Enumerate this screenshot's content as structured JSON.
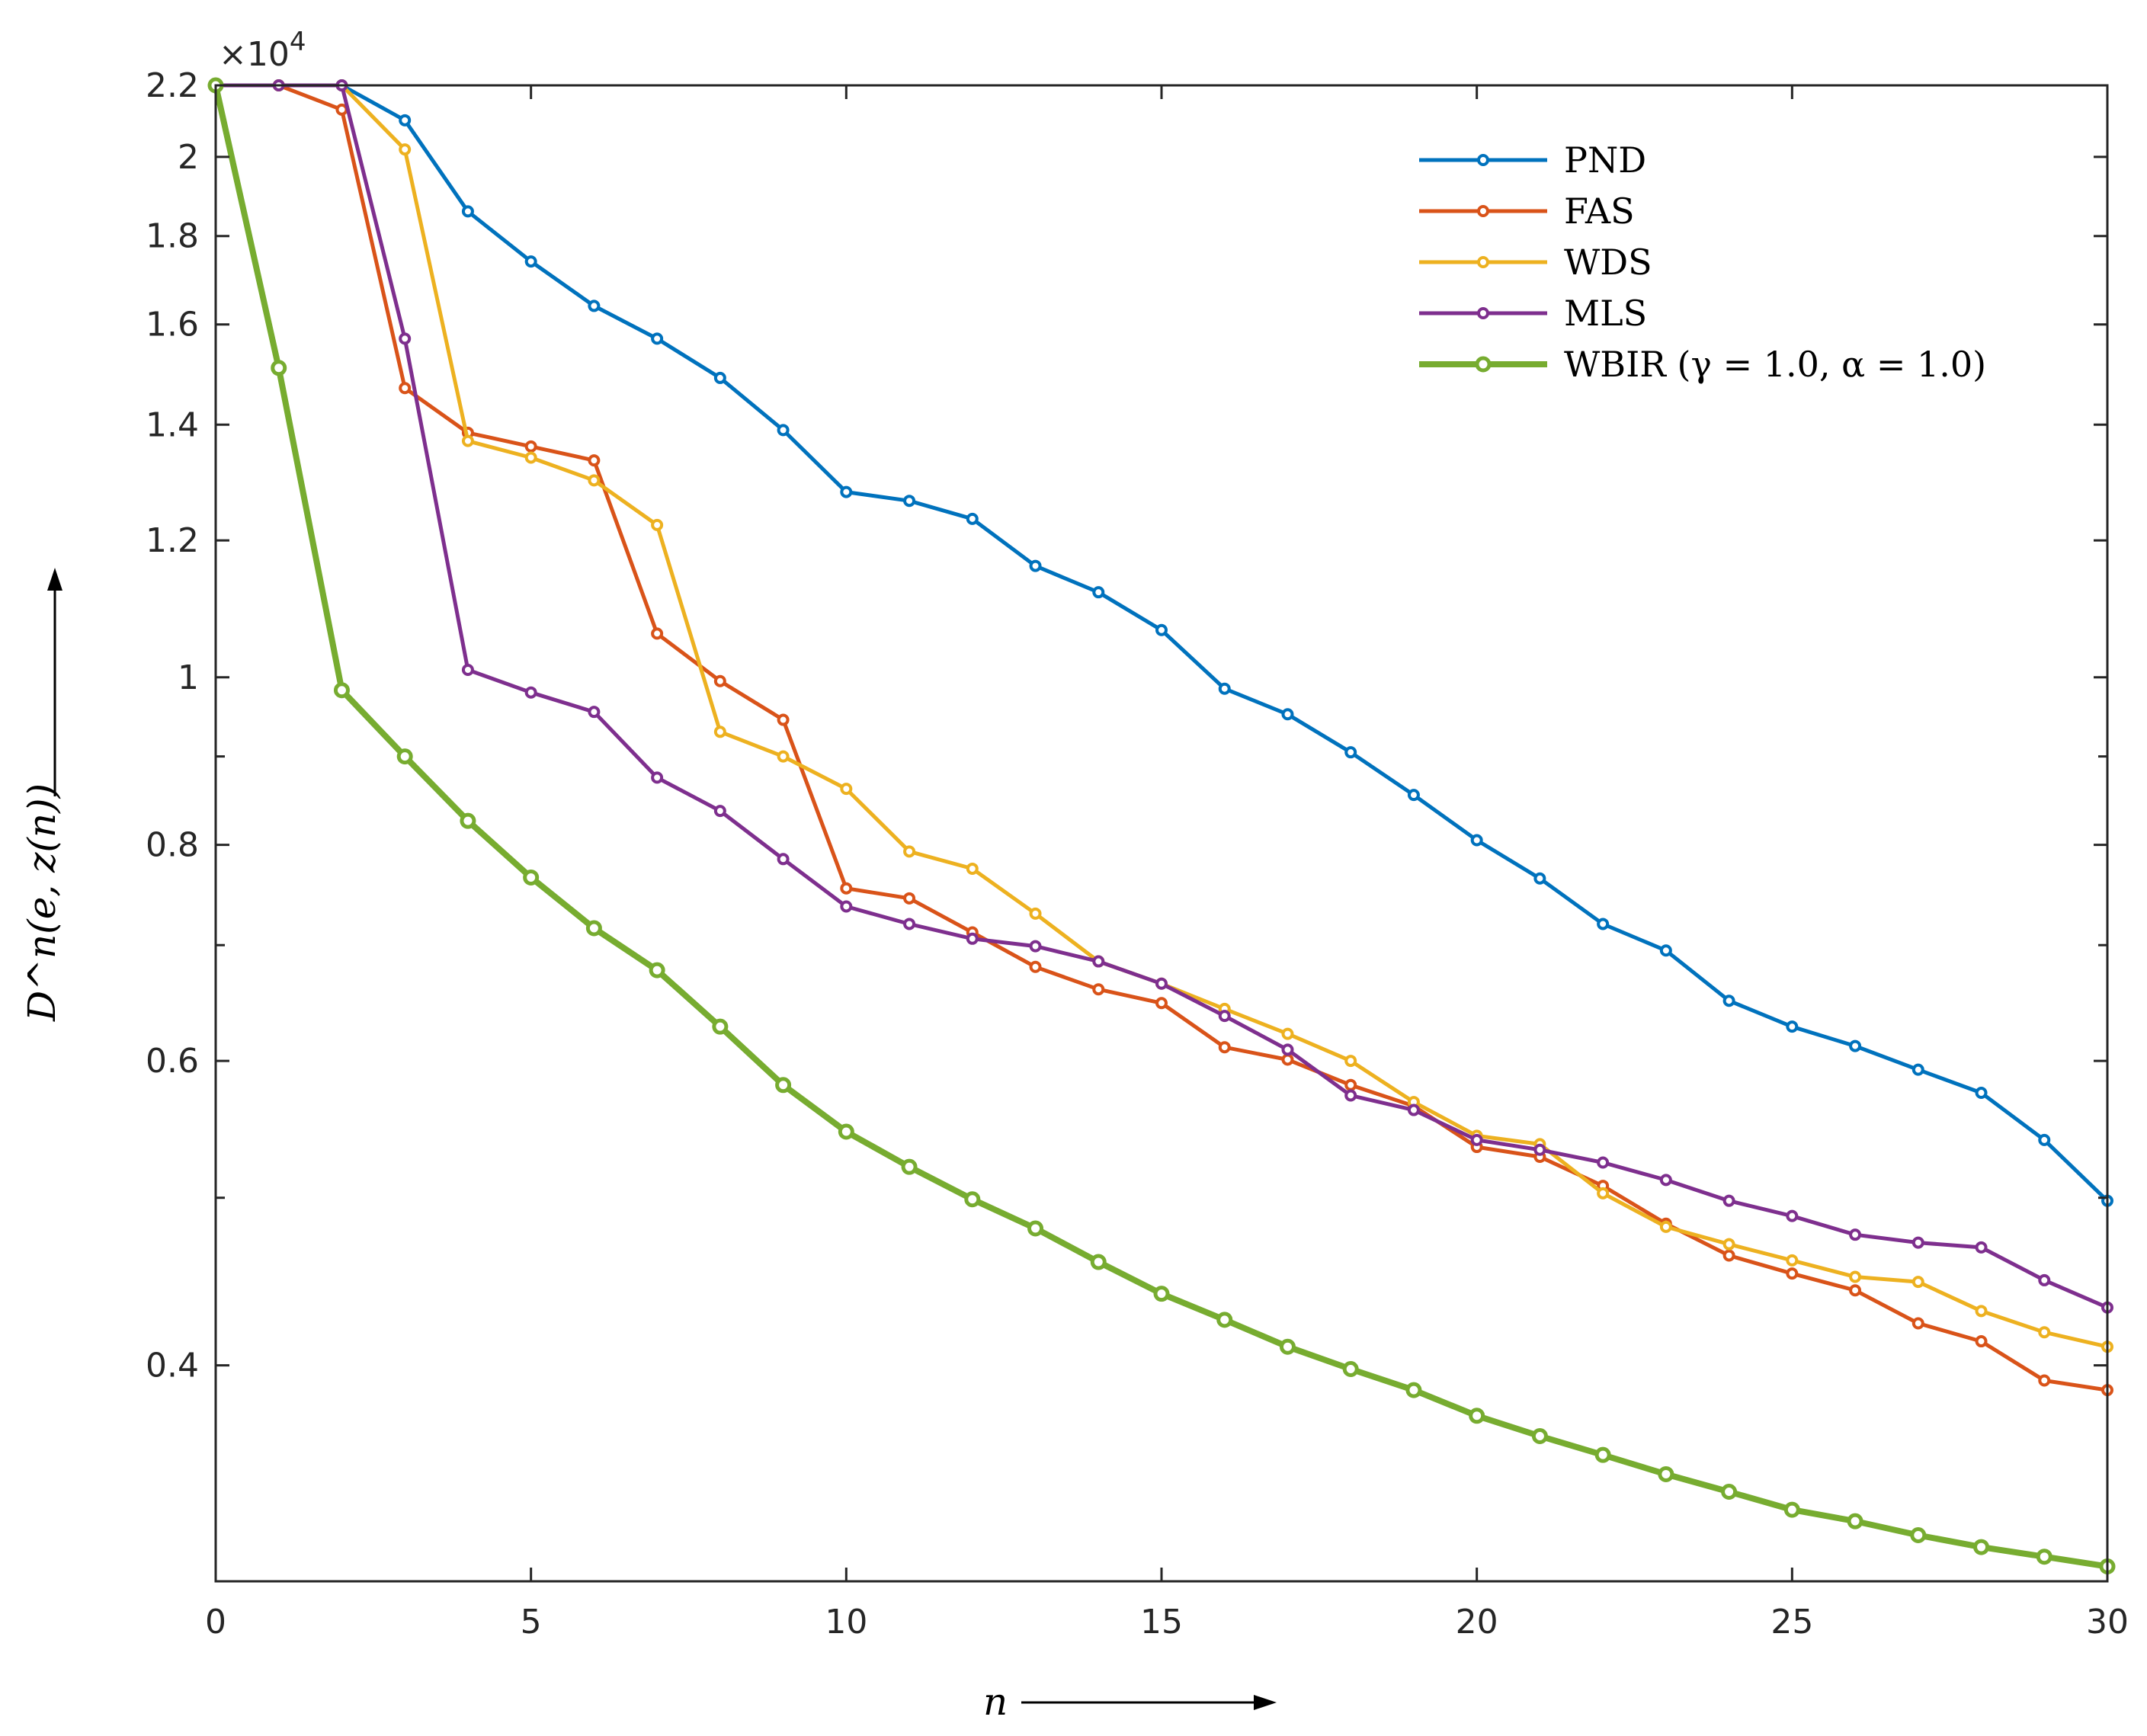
{
  "chart_data": {
    "type": "line",
    "title": "",
    "xlabel": "n",
    "ylabel": "D^n(e, z(n))",
    "xlim": [
      0,
      30
    ],
    "ylim": [
      0.3,
      2.2
    ],
    "y_scale": "log",
    "y_exponent_label": "×10^4",
    "x_ticks": [
      0,
      5,
      10,
      15,
      20,
      25,
      30
    ],
    "x_tick_labels": [
      "0",
      "5",
      "10",
      "15",
      "20",
      "25",
      "30"
    ],
    "y_ticks": [
      0.4,
      0.6,
      0.8,
      1,
      1.2,
      1.4,
      1.6,
      1.8,
      2,
      2.2
    ],
    "y_tick_labels": [
      "0.4",
      "0.6",
      "0.8",
      "1",
      "1.2",
      "1.4",
      "1.6",
      "1.8",
      "2",
      "2.2"
    ],
    "legend_position": "top-right",
    "x": [
      0,
      1,
      2,
      3,
      4,
      5,
      6,
      7,
      8,
      9,
      10,
      11,
      12,
      13,
      14,
      15,
      16,
      17,
      18,
      19,
      20,
      21,
      22,
      23,
      24,
      25,
      26,
      27,
      28,
      29,
      30
    ],
    "series": [
      {
        "name": "PND",
        "legend_text": "PND",
        "color": "#0072BD",
        "line_width": 5,
        "marker_radius": 6,
        "values": [
          2.2,
          2.2,
          2.2,
          2.1,
          1.86,
          1.74,
          1.64,
          1.57,
          1.49,
          1.39,
          1.28,
          1.265,
          1.235,
          1.16,
          1.12,
          1.065,
          0.985,
          0.952,
          0.905,
          0.855,
          0.805,
          0.765,
          0.72,
          0.695,
          0.65,
          0.628,
          0.612,
          0.593,
          0.575,
          0.54,
          0.498
        ]
      },
      {
        "name": "FAS",
        "legend_text": "FAS",
        "color": "#D95319",
        "line_width": 5,
        "marker_radius": 6,
        "values": [
          2.2,
          2.2,
          2.13,
          1.47,
          1.385,
          1.36,
          1.335,
          1.06,
          0.995,
          0.945,
          0.755,
          0.745,
          0.712,
          0.68,
          0.66,
          0.648,
          0.611,
          0.601,
          0.581,
          0.565,
          0.535,
          0.528,
          0.508,
          0.483,
          0.463,
          0.452,
          0.442,
          0.423,
          0.413,
          0.392,
          0.387
        ]
      },
      {
        "name": "WDS",
        "legend_text": "WDS",
        "color": "#EDB120",
        "line_width": 5,
        "marker_radius": 6,
        "values": [
          2.2,
          2.2,
          2.2,
          2.02,
          1.37,
          1.34,
          1.3,
          1.225,
          0.93,
          0.9,
          0.862,
          0.793,
          0.775,
          0.73,
          0.685,
          0.665,
          0.643,
          0.622,
          0.6,
          0.568,
          0.543,
          0.537,
          0.503,
          0.481,
          0.47,
          0.46,
          0.45,
          0.447,
          0.43,
          0.418,
          0.41
        ]
      },
      {
        "name": "MLS",
        "legend_text": "MLS",
        "color": "#7E2F8E",
        "line_width": 5,
        "marker_radius": 6,
        "values": [
          2.2,
          2.2,
          2.2,
          1.57,
          1.01,
          0.98,
          0.955,
          0.875,
          0.837,
          0.785,
          0.737,
          0.72,
          0.706,
          0.699,
          0.685,
          0.665,
          0.637,
          0.609,
          0.573,
          0.562,
          0.54,
          0.533,
          0.524,
          0.512,
          0.498,
          0.488,
          0.476,
          0.471,
          0.468,
          0.448,
          0.432
        ]
      },
      {
        "name": "WBIR",
        "legend_text": "WBIR (γ = 1.0, α = 1.0)",
        "color": "#77AC30",
        "line_width": 8,
        "marker_radius": 8,
        "values": [
          2.2,
          1.51,
          0.983,
          0.9,
          0.826,
          0.766,
          0.716,
          0.677,
          0.628,
          0.581,
          0.546,
          0.521,
          0.499,
          0.48,
          0.459,
          0.44,
          0.425,
          0.41,
          0.398,
          0.387,
          0.374,
          0.364,
          0.355,
          0.346,
          0.338,
          0.33,
          0.325,
          0.319,
          0.314,
          0.31,
          0.306
        ]
      }
    ]
  }
}
